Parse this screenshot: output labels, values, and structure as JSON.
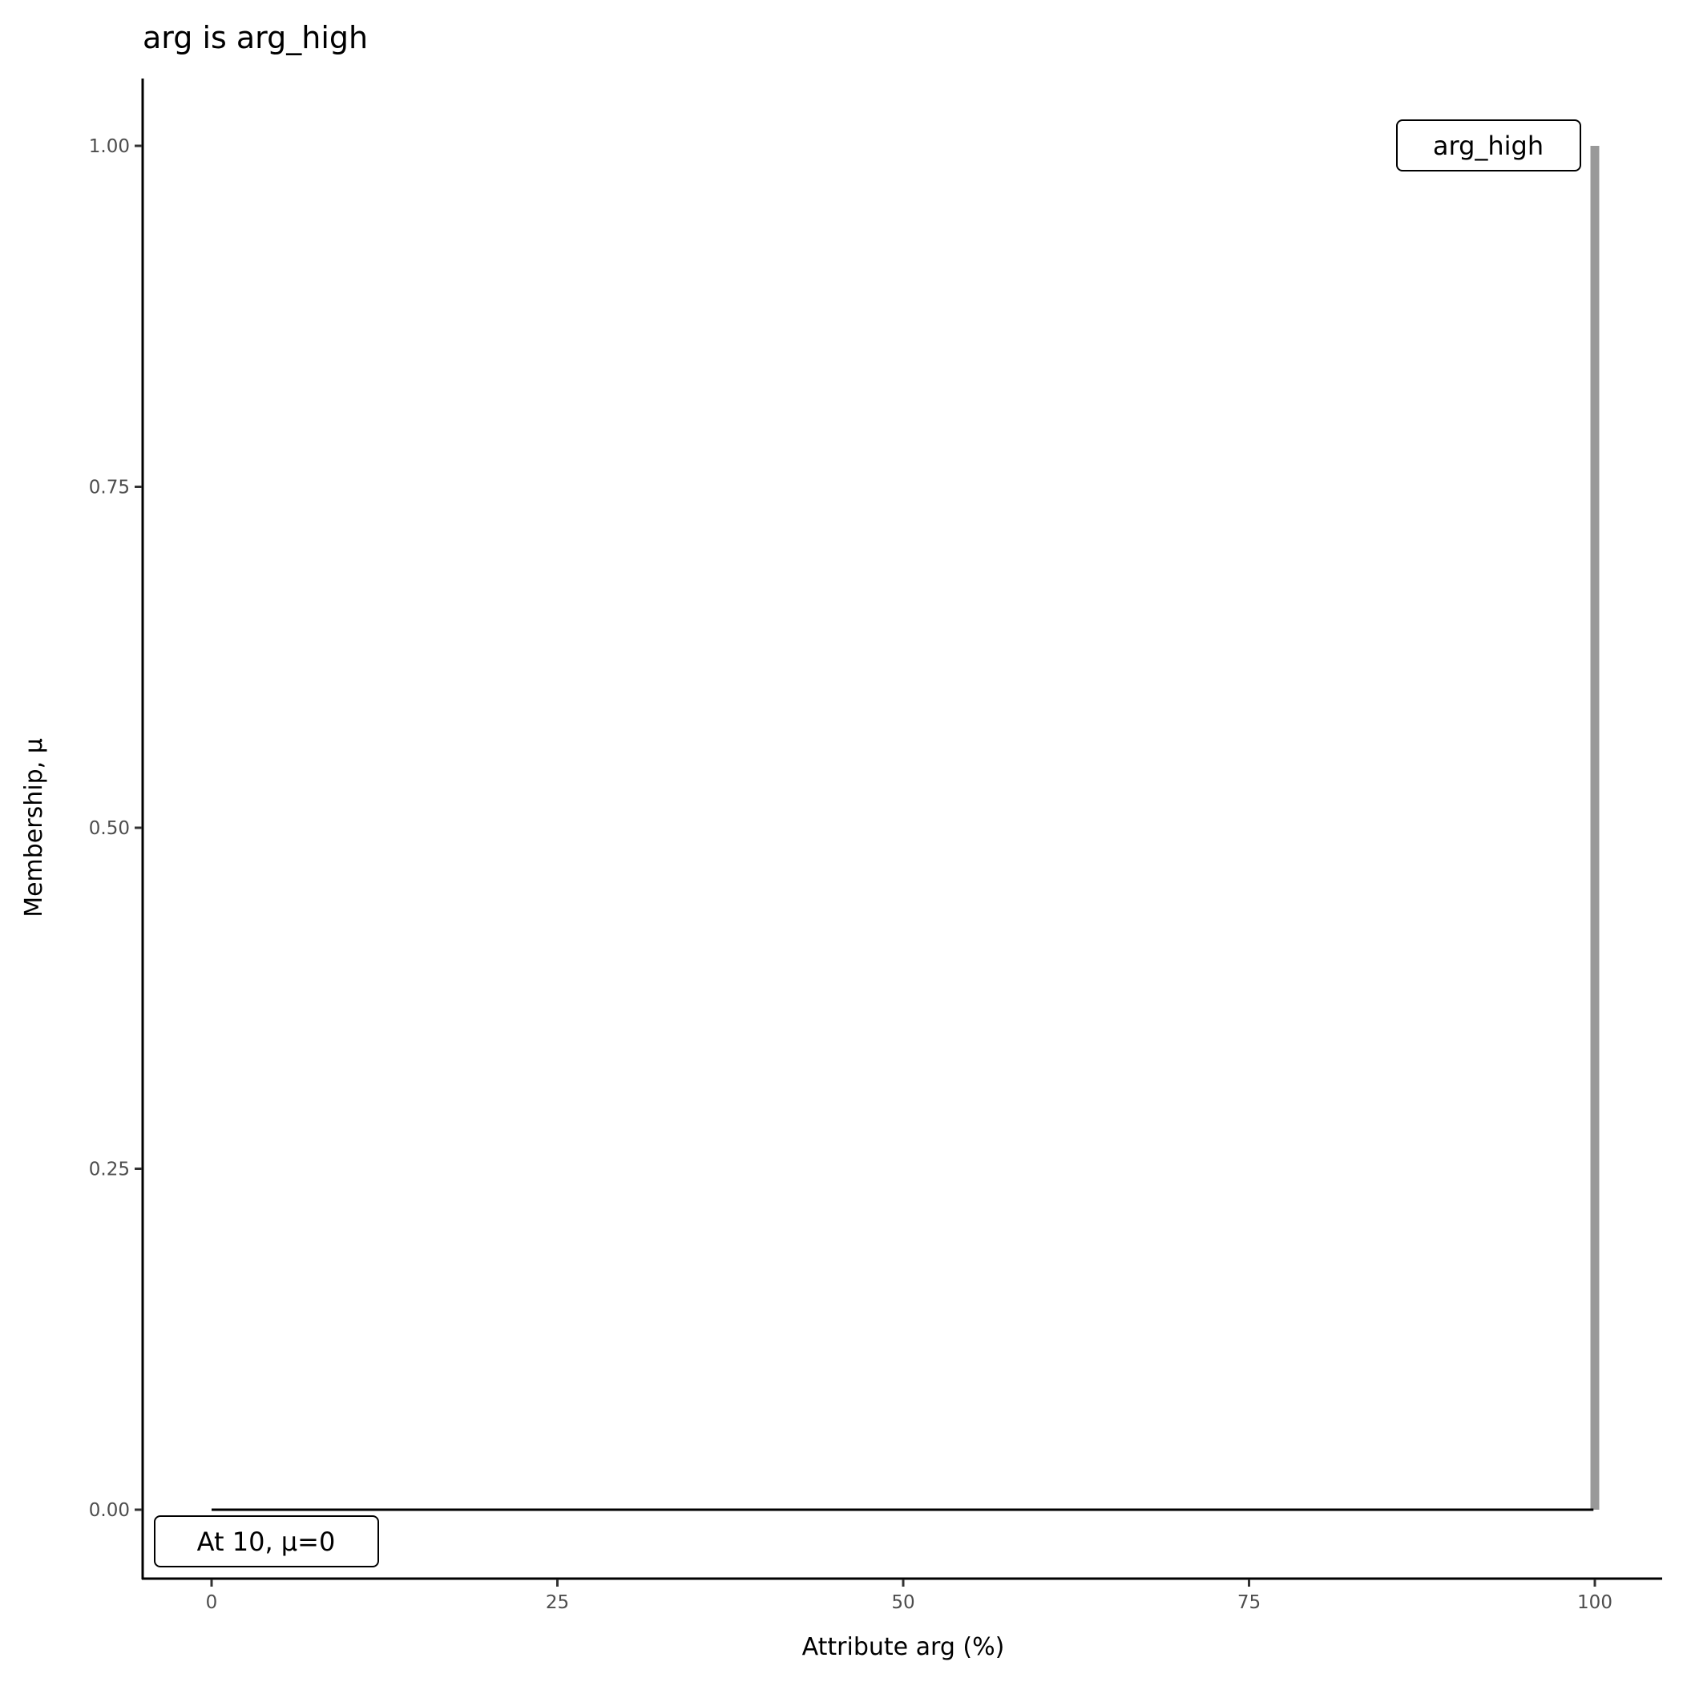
{
  "chart_data": {
    "type": "line",
    "title": "arg is arg_high",
    "xlabel": "Attribute arg (%)",
    "ylabel": "Membership, μ",
    "xlim": [
      -5,
      105
    ],
    "ylim": [
      -0.05,
      1.05
    ],
    "x_ticks": [
      0,
      25,
      50,
      75,
      100
    ],
    "x_tick_labels": [
      "0",
      "25",
      "50",
      "75",
      "100"
    ],
    "y_ticks": [
      0,
      0.25,
      0.5,
      0.75,
      1
    ],
    "y_tick_labels": [
      "0.00",
      "0.25",
      "0.50",
      "0.75",
      "1.00"
    ],
    "grid": false,
    "series": [
      {
        "x": [
          0,
          99.9,
          100
        ],
        "y": [
          0,
          0,
          1
        ],
        "color": "#000000"
      }
    ],
    "highlight_segment": {
      "x": [
        100,
        100
      ],
      "y": [
        0,
        1
      ],
      "color": "#999999"
    },
    "annotations": [
      {
        "text": "arg_high",
        "x": 100,
        "y": 1,
        "anchor": "end"
      },
      {
        "text": "At 10, μ=0",
        "x": 0,
        "y": -0.025,
        "anchor": "middle"
      }
    ]
  }
}
